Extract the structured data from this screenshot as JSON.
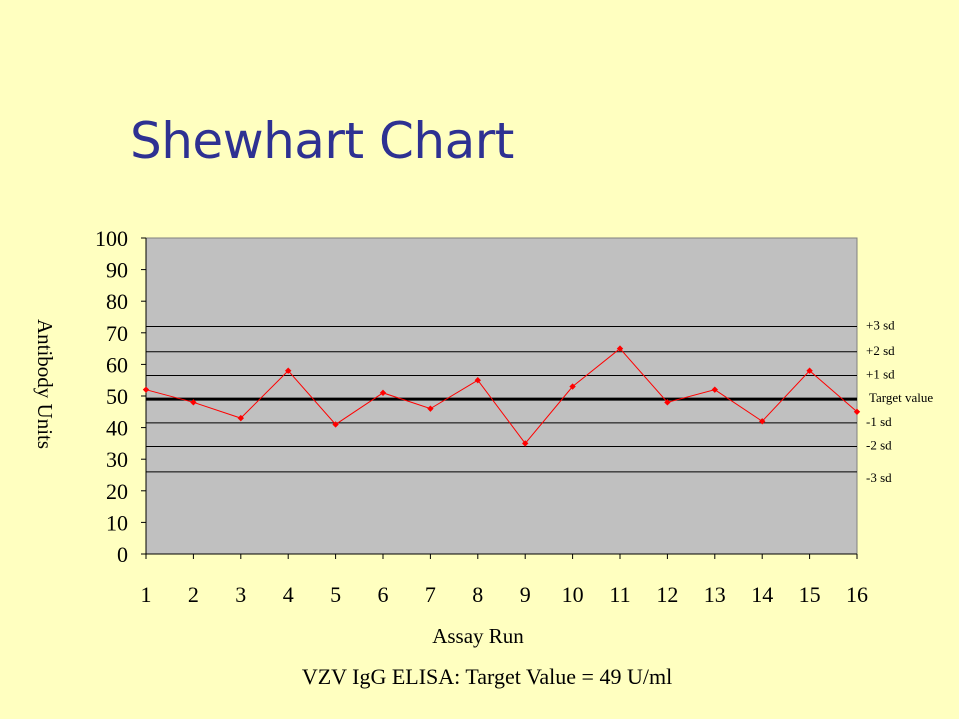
{
  "slide": {
    "title": "Shewhart Chart",
    "caption": "VZV IgG ELISA: Target Value = 49 U/ml"
  },
  "colors": {
    "background": "#FFFFC0",
    "title": "#2E3192",
    "plot_area": "#C0C0C0",
    "series": "#FF0000",
    "target_line": "#000000",
    "limit_lines": "#000000"
  },
  "chart_data": {
    "type": "line",
    "title": "Shewhart Chart",
    "xlabel": "Assay Run",
    "ylabel": "Antibody Units",
    "ylim": [
      0,
      100
    ],
    "yticks": [
      0,
      10,
      20,
      30,
      40,
      50,
      60,
      70,
      80,
      90,
      100
    ],
    "x": [
      1,
      2,
      3,
      4,
      5,
      6,
      7,
      8,
      9,
      10,
      11,
      12,
      13,
      14,
      15,
      16
    ],
    "series": [
      {
        "values": [
          52,
          48,
          43,
          58,
          41,
          51,
          46,
          55,
          35,
          53,
          65,
          48,
          52,
          42,
          58,
          45
        ]
      }
    ],
    "target": {
      "label": "Target value",
      "value": 49
    },
    "limits": [
      {
        "label": "+3 sd",
        "value": 72
      },
      {
        "label": "+2 sd",
        "value": 64
      },
      {
        "label": "+1 sd",
        "value": 56.5
      },
      {
        "label": "-1 sd",
        "value": 41.5
      },
      {
        "label": "-2 sd",
        "value": 34
      },
      {
        "label": "-3 sd",
        "value": 26
      }
    ],
    "grid": false
  }
}
